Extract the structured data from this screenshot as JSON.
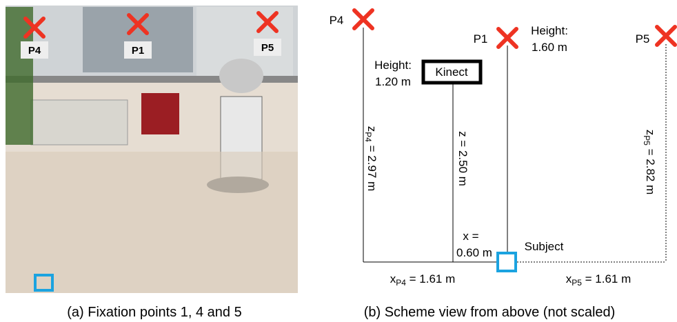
{
  "photo": {
    "labels": [
      "P4",
      "P1",
      "P5"
    ],
    "caption": "(a) Fixation points 1, 4 and 5"
  },
  "scheme": {
    "points": [
      "P4",
      "P1",
      "P5"
    ],
    "p1_height": [
      "Height:",
      "1.60 m"
    ],
    "kinect": {
      "label": "Kinect",
      "height": [
        "Height:",
        "1.20 m"
      ]
    },
    "z_p4": {
      "symbol": "z",
      "sub": "P4",
      "rest": " = 2.97 m"
    },
    "z": "z = 2.50 m",
    "z_p5": {
      "symbol": "z",
      "sub": "P5",
      "rest": " = 2.82 m"
    },
    "x": [
      "x =",
      "0.60 m"
    ],
    "subject": "Subject",
    "x_p4": {
      "symbol": "x",
      "sub": "P4",
      "rest": " = 1.61 m"
    },
    "x_p5": {
      "symbol": "x",
      "sub": "P5",
      "rest": " = 1.61 m"
    },
    "caption": "(b) Scheme view from above (not scaled)"
  }
}
